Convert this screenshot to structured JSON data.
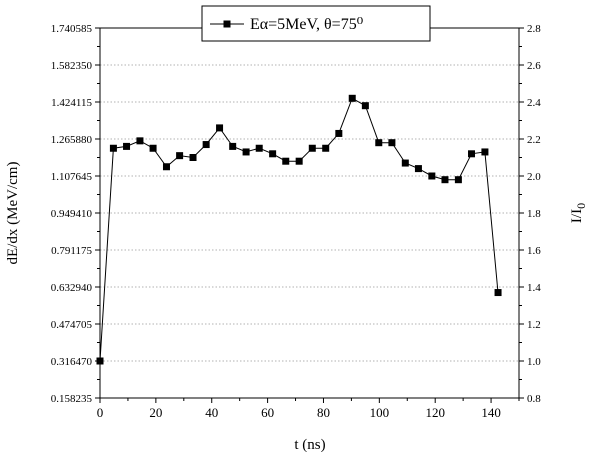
{
  "chart_data": {
    "type": "line",
    "xlabel": "t (ns)",
    "ylabel": "dE/dx (MeV/cm)",
    "y2label": "I/I0",
    "xlim": [
      0,
      150
    ],
    "ylim": [
      0.158235,
      1.740585
    ],
    "y2lim": [
      0.8,
      2.8
    ],
    "xticks": [
      "0",
      "20",
      "40",
      "60",
      "80",
      "100",
      "120",
      "140"
    ],
    "yticks_left": [
      "0.158235",
      "0.316470",
      "0.474705",
      "0.632940",
      "0.791175",
      "0.949410",
      "1.107645",
      "1.265880",
      "1.424115",
      "1.582350",
      "1.740585"
    ],
    "yticks_right": [
      "0.8",
      "1.0",
      "1.2",
      "1.4",
      "1.6",
      "1.8",
      "2.0",
      "2.2",
      "2.4",
      "2.6",
      "2.8"
    ],
    "grid": "horizontal dotted",
    "legend_position": "top",
    "series": [
      {
        "name": "Eα=5MeV, θ=75⁰",
        "marker": "square",
        "color": "#000000",
        "x": [
          0,
          4.8,
          9.5,
          14.3,
          19,
          23.8,
          28.5,
          33.3,
          38,
          42.8,
          47.5,
          52.3,
          57,
          61.8,
          66.5,
          71.3,
          76,
          80.8,
          85.5,
          90.3,
          95,
          99.8,
          104.5,
          109.3,
          114,
          118.8,
          123.5,
          128.3,
          133,
          137.8,
          142.5
        ],
        "values": [
          1.0,
          2.15,
          2.16,
          2.19,
          2.15,
          2.05,
          2.11,
          2.1,
          2.17,
          2.26,
          2.16,
          2.13,
          2.15,
          2.12,
          2.08,
          2.08,
          2.15,
          2.15,
          2.23,
          2.42,
          2.38,
          2.18,
          2.18,
          2.07,
          2.04,
          2.0,
          1.98,
          1.98,
          2.12,
          2.13,
          1.37
        ]
      }
    ]
  }
}
